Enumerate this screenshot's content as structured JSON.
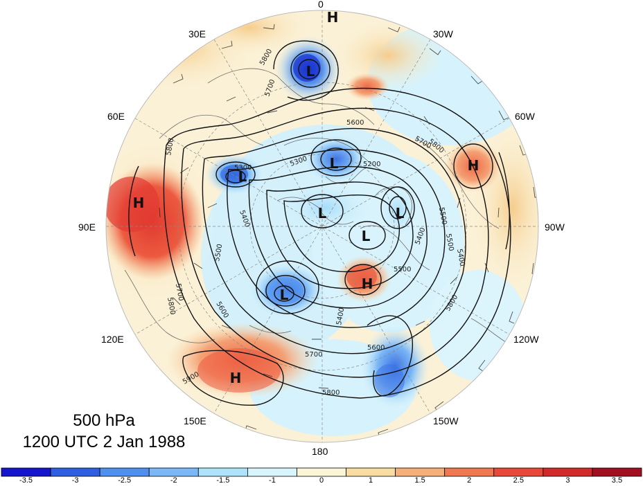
{
  "caption": {
    "level": "500 hPa",
    "datetime": "1200 UTC 2 Jan 1988"
  },
  "longitude_labels": [
    {
      "id": "0",
      "text": "0"
    },
    {
      "id": "30w",
      "text": "30W"
    },
    {
      "id": "60w",
      "text": "60W"
    },
    {
      "id": "90w",
      "text": "90W"
    },
    {
      "id": "120w",
      "text": "120W"
    },
    {
      "id": "150w",
      "text": "150W"
    },
    {
      "id": "180",
      "text": "180"
    },
    {
      "id": "150e",
      "text": "150E"
    },
    {
      "id": "120e",
      "text": "120E"
    },
    {
      "id": "90e",
      "text": "90E"
    },
    {
      "id": "60e",
      "text": "60E"
    },
    {
      "id": "30e",
      "text": "30E"
    }
  ],
  "pressure_centers": [
    {
      "type": "H",
      "name": "high-north-pole-edge"
    },
    {
      "type": "L",
      "name": "low-scandinavia"
    },
    {
      "type": "H",
      "name": "high-north-atlantic"
    },
    {
      "type": "H",
      "name": "high-central-asia"
    },
    {
      "type": "L",
      "name": "low-west-siberia"
    },
    {
      "type": "L",
      "name": "low-polar-cap"
    },
    {
      "type": "L",
      "name": "low-central-arctic"
    },
    {
      "type": "L",
      "name": "low-greenland"
    },
    {
      "type": "L",
      "name": "low-canadian-arctic"
    },
    {
      "type": "L",
      "name": "low-east-siberia"
    },
    {
      "type": "H",
      "name": "high-alaska"
    },
    {
      "type": "H",
      "name": "high-north-pacific"
    }
  ],
  "contour_labels": [
    "5800",
    "5700",
    "5800",
    "5600",
    "5800",
    "5700",
    "5200",
    "5300",
    "5400",
    "5500",
    "5600",
    "5500",
    "5400",
    "5500",
    "5700",
    "5800",
    "5900",
    "5700",
    "5800",
    "5600",
    "5800",
    "5400",
    "5500",
    "5400",
    "5300"
  ],
  "colorbar": {
    "colors": [
      "#1515cc",
      "#2e5fe0",
      "#4f8ff0",
      "#7ab8f8",
      "#aee4fb",
      "#d8f4fc",
      "#fbf5d8",
      "#f8dca0",
      "#f4b078",
      "#f07850",
      "#e84838",
      "#d02a2a",
      "#a01020"
    ],
    "ticks": [
      "-3.5",
      "-3",
      "-2.5",
      "-2",
      "-1.5",
      "-1",
      "0",
      "1",
      "1.5",
      "2",
      "2.5",
      "3",
      "3.5"
    ]
  }
}
